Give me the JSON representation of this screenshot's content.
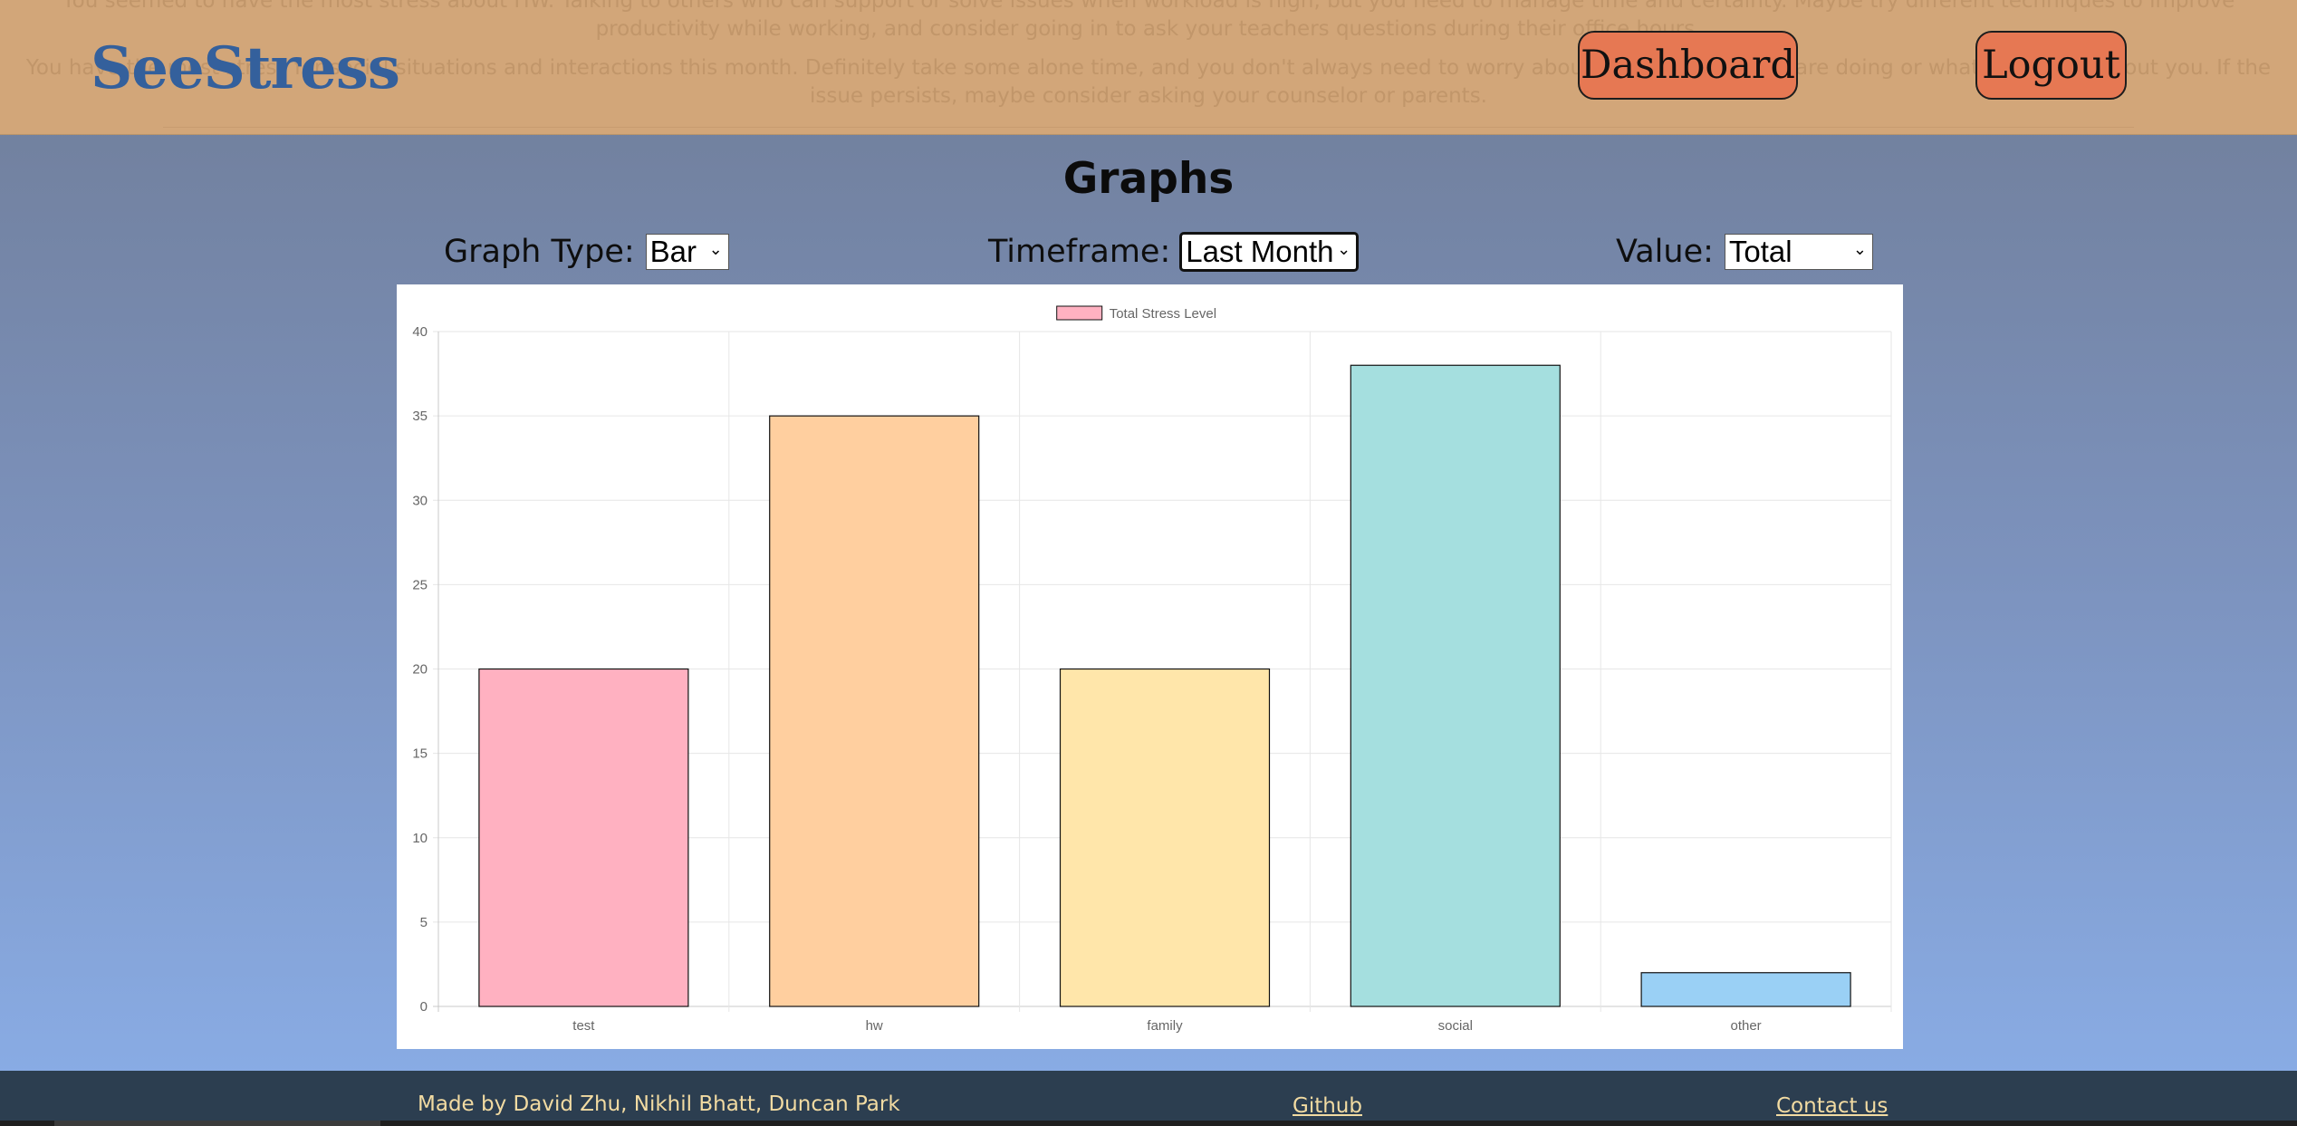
{
  "header": {
    "logo": "SeeStress",
    "message_1": "You seemed to have the most stress about HW. Talking to others who can support or solve issues when workload is high, but you need to manage time and certainty. Maybe try different techniques to improve productivity while working, and consider going in to ask your teachers questions during their office hours.",
    "message_2": "You have the most stress for social situations and interactions this month. Definitely take some alone time, and you don't always need to worry about what other people are doing or what they think about you. If the issue persists, maybe consider asking your counselor or parents.",
    "dashboard_label": "Dashboard",
    "logout_label": "Logout"
  },
  "main": {
    "title": "Graphs",
    "controls": {
      "graph_type_label": "Graph Type:",
      "graph_type_value": "Bar",
      "timeframe_label": "Timeframe:",
      "timeframe_value": "Last Month",
      "value_label": "Value:",
      "value_value": "Total"
    }
  },
  "chart_data": {
    "type": "bar",
    "categories": [
      "test",
      "hw",
      "family",
      "social",
      "other"
    ],
    "series": [
      {
        "name": "Total Stress Level",
        "values": [
          20,
          35,
          20,
          38,
          2
        ]
      }
    ],
    "bar_colors": [
      "#ffb1c1",
      "#ffcf9f",
      "#ffe6aa",
      "#a5dfdf",
      "#9ad0f5"
    ],
    "legend_color": "#ffb1c1",
    "ylim": [
      0,
      40
    ],
    "yticks": [
      0,
      5,
      10,
      15,
      20,
      25,
      30,
      35,
      40
    ],
    "grid": true,
    "legend_position": "top"
  },
  "footer": {
    "credit": "Made by David Zhu, Nikhil Bhatt, Duncan Park",
    "github_label": "Github",
    "contact_label": "Contact us"
  }
}
